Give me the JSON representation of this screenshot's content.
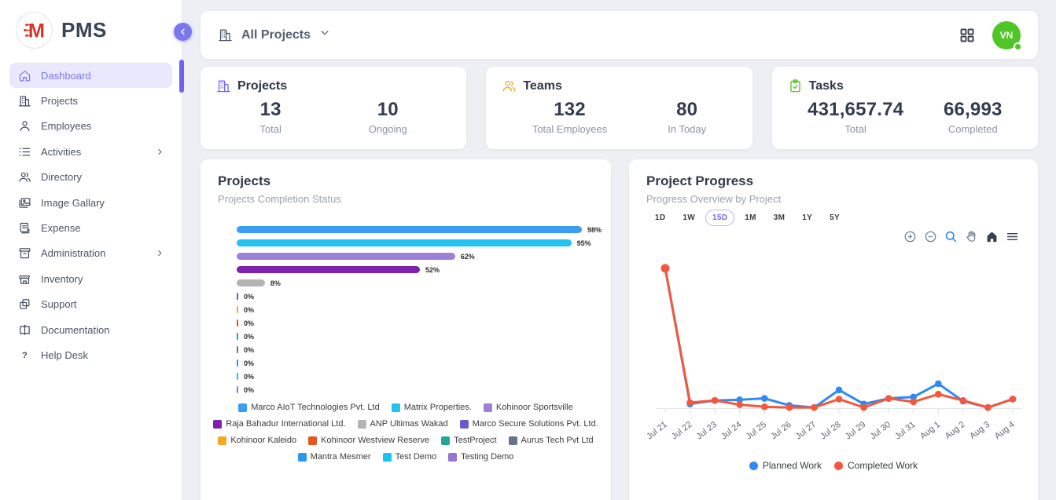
{
  "app": {
    "name": "PMS",
    "logo_letter": "M",
    "logo_color": "#d8342c"
  },
  "sidebar": {
    "items": [
      {
        "label": "Dashboard",
        "icon": "home-icon",
        "active": true
      },
      {
        "label": "Projects",
        "icon": "building-icon"
      },
      {
        "label": "Employees",
        "icon": "user-icon"
      },
      {
        "label": "Activities",
        "icon": "list-icon",
        "expandable": true
      },
      {
        "label": "Directory",
        "icon": "users-icon"
      },
      {
        "label": "Image Gallary",
        "icon": "image-icon"
      },
      {
        "label": "Expense",
        "icon": "receipt-icon"
      },
      {
        "label": "Administration",
        "icon": "archive-icon",
        "expandable": true
      },
      {
        "label": "Inventory",
        "icon": "store-icon"
      },
      {
        "label": "Support",
        "icon": "copy-icon"
      },
      {
        "label": "Documentation",
        "icon": "book-icon"
      },
      {
        "label": "Help Desk",
        "icon": "help-icon"
      }
    ]
  },
  "topbar": {
    "scope_label": "All Projects",
    "scope_icon": "building-icon",
    "grid_icon": "apps-grid-icon",
    "avatar_initials": "VN",
    "avatar_color": "#4fc626",
    "status": "online"
  },
  "stats": {
    "cards": [
      {
        "title": "Projects",
        "icon": "building-icon",
        "icon_color": "#6f6af8",
        "metrics": [
          {
            "value": "13",
            "label": "Total"
          },
          {
            "value": "10",
            "label": "Ongoing"
          }
        ]
      },
      {
        "title": "Teams",
        "icon": "users-icon",
        "icon_color": "#f7a823",
        "metrics": [
          {
            "value": "132",
            "label": "Total Employees"
          },
          {
            "value": "80",
            "label": "In Today"
          }
        ]
      },
      {
        "title": "Tasks",
        "icon": "clipboard-check-icon",
        "icon_color": "#55c41e",
        "metrics": [
          {
            "value": "431,657.74",
            "label": "Total"
          },
          {
            "value": "66,993",
            "label": "Completed"
          }
        ]
      }
    ]
  },
  "projects_chart": {
    "title": "Projects",
    "subtitle": "Projects Completion Status",
    "chart_data": {
      "type": "bar",
      "orientation": "horizontal",
      "value_suffix": "%",
      "xlim": [
        0,
        100
      ],
      "legend_position": "bottom",
      "bars": [
        {
          "name": "Marco AIoT Technologies Pvt. Ltd",
          "value": 98,
          "color": "#3b9df6"
        },
        {
          "name": "Matrix Properties.",
          "value": 95,
          "color": "#22c3f0"
        },
        {
          "name": "Kohinoor Sportsville",
          "value": 62,
          "color": "#9c7fd6"
        },
        {
          "name": "Raja Bahadur International Ltd.",
          "value": 52,
          "color": "#7d22ad"
        },
        {
          "name": "ANP Ultimas Wakad",
          "value": 8,
          "color": "#b4b4b4"
        },
        {
          "name": "Marco Secure Solutions Pvt. Ltd.",
          "value": 0,
          "color": "#6a5acd"
        },
        {
          "name": "Kohinoor Kaleido",
          "value": 0,
          "color": "#f7a823"
        },
        {
          "name": "Kohinoor Westview Reserve",
          "value": 0,
          "color": "#e8541f"
        },
        {
          "name": "TestProject",
          "value": 0,
          "color": "#26a69a"
        },
        {
          "name": "Aurus Tech Pvt Ltd",
          "value": 0,
          "color": "#64748b"
        },
        {
          "name": "Mantra Mesmer",
          "value": 0,
          "color": "#2b98f0"
        },
        {
          "name": "Test Demo",
          "value": 0,
          "color": "#18c5f0"
        },
        {
          "name": "Testing Demo",
          "value": 0,
          "color": "#9575cd"
        }
      ]
    }
  },
  "progress_chart": {
    "title": "Project Progress",
    "subtitle": "Progress Overview by Project",
    "ranges": [
      {
        "label": "1D"
      },
      {
        "label": "1W"
      },
      {
        "label": "15D",
        "active": true
      },
      {
        "label": "1M"
      },
      {
        "label": "3M"
      },
      {
        "label": "1Y"
      },
      {
        "label": "5Y"
      }
    ],
    "toolbar": [
      "zoom-in-icon",
      "zoom-out-icon",
      "zoom-area-icon",
      "pan-icon",
      "home-icon",
      "menu-icon"
    ],
    "chart_data": {
      "type": "line",
      "categories": [
        "Jul 21",
        "Jul 22",
        "Jul 23",
        "Jul 24",
        "Jul 25",
        "Jul 26",
        "Jul 27",
        "Jul 28",
        "Jul 29",
        "Jul 30",
        "Jul 31",
        "Aug 1",
        "Aug 2",
        "Aug 3",
        "Aug 4"
      ],
      "series": [
        {
          "name": "Planned Work",
          "color": "#2e8af2",
          "values": [
            100,
            3,
            5.5,
            6,
            7,
            2,
            0.5,
            13,
            3,
            7,
            8,
            17.5,
            5,
            0.5,
            6.5
          ]
        },
        {
          "name": "Completed Work",
          "color": "#f4573c",
          "values": [
            100,
            4,
            5.5,
            2.5,
            1,
            0.5,
            0.5,
            6.5,
            0.5,
            7,
            4.5,
            10,
            5.5,
            0.5,
            6.5
          ]
        }
      ],
      "ylim": [
        0,
        105
      ],
      "grid": false,
      "legend_position": "bottom"
    }
  }
}
